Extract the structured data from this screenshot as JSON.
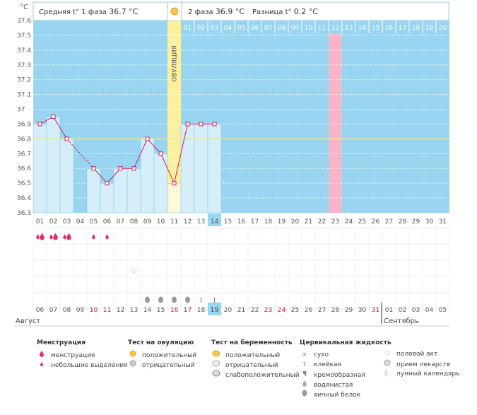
{
  "header": {
    "y_unit": "°C",
    "phase1_label": "Средняя t° 1 фаза",
    "phase1_value": "36.7 °C",
    "phase2_label": "2 фаза",
    "phase2_value": "36.9 °C",
    "diff_label": "Разница t°",
    "diff_value": "0.2 °C",
    "ovulation_label": "ОВУЛЯЦИЯ"
  },
  "chart_data": {
    "type": "bar",
    "x": [
      "01",
      "02",
      "03",
      "04",
      "05",
      "06",
      "07",
      "08",
      "09",
      "10",
      "11",
      "12",
      "13",
      "14",
      "15",
      "16",
      "17",
      "18",
      "19",
      "20",
      "21",
      "22",
      "23",
      "24",
      "25",
      "26",
      "27",
      "28",
      "29",
      "30",
      "31"
    ],
    "values": [
      36.9,
      36.95,
      36.8,
      null,
      36.6,
      36.5,
      36.6,
      36.6,
      36.8,
      36.7,
      36.5,
      36.9,
      36.9,
      36.9,
      null,
      null,
      null,
      null,
      null,
      null,
      null,
      null,
      null,
      null,
      null,
      null,
      null,
      null,
      null,
      null,
      null
    ],
    "ylim": [
      36.3,
      37.6
    ],
    "y_ticks": [
      "36.3",
      "36.4",
      "36.5",
      "36.6",
      "36.7",
      "36.8",
      "36.9",
      "37",
      "37.1",
      "37.2",
      "37.3",
      "37.4",
      "37.5",
      "37.6"
    ],
    "coverline": 36.8,
    "ovulation_day": 11,
    "highlight_day": 23,
    "current_day": 14,
    "phase2_days": [
      "01",
      "02",
      "03",
      "04",
      "05",
      "06",
      "07",
      "08",
      "09",
      "10",
      "11",
      "12",
      "13",
      "14",
      "15",
      "16",
      "17",
      "18",
      "19",
      "20"
    ],
    "dates": [
      "06",
      "07",
      "08",
      "09",
      "10",
      "11",
      "12",
      "13",
      "14",
      "15",
      "16",
      "17",
      "18",
      "19",
      "20",
      "21",
      "22",
      "23",
      "24",
      "25",
      "26",
      "27",
      "28",
      "29",
      "30",
      "31",
      "01",
      "02",
      "03",
      "04",
      "05"
    ],
    "red_dates": [
      4,
      5,
      10,
      11,
      17,
      18,
      25
    ],
    "today_date_index": 13,
    "month_left": "Август",
    "month_right": "Сентябрь",
    "menstruation_marks": [
      3,
      3,
      3,
      null,
      2,
      2,
      null,
      null,
      null,
      null,
      null,
      null,
      null,
      null,
      null,
      null,
      null,
      null,
      null,
      null,
      null,
      null,
      null,
      null,
      null,
      null,
      null,
      null,
      null,
      null,
      null
    ],
    "intercourse_days": [
      8
    ],
    "cervical_marks": [
      {
        "day": 9,
        "type": "egg"
      },
      {
        "day": 10,
        "type": "egg"
      },
      {
        "day": 11,
        "type": "egg"
      },
      {
        "day": 12,
        "type": "egg"
      },
      {
        "day": 13,
        "type": "sticky"
      },
      {
        "day": 14,
        "type": "sticky"
      }
    ],
    "colors": {
      "bg": "#99d5f0",
      "bar": "#d5eefa",
      "line": "#c8235a",
      "coverline": "#e8e89a",
      "ovulation": "#faf0a0",
      "highlight": "#f7b5c8",
      "today": "#99d5f0"
    }
  },
  "legend": {
    "menstruation": {
      "title": "Менструация",
      "items": [
        "менструация",
        "небольшие выделения"
      ]
    },
    "ovulation_test": {
      "title": "Тест на овуляцию",
      "items": [
        "положительный",
        "отрицательный"
      ]
    },
    "pregnancy_test": {
      "title": "Тест на беременность",
      "items": [
        "положительный",
        "отрицательный",
        "слабоположительный"
      ]
    },
    "cervical": {
      "title": "Цервикальная жидкость",
      "items": [
        "сухо",
        "клейкая",
        "кремообразная",
        "водянистая",
        "яичный белок"
      ]
    },
    "other": {
      "items": [
        "половой акт",
        "прием лекарств",
        "лунный календарь"
      ]
    }
  }
}
